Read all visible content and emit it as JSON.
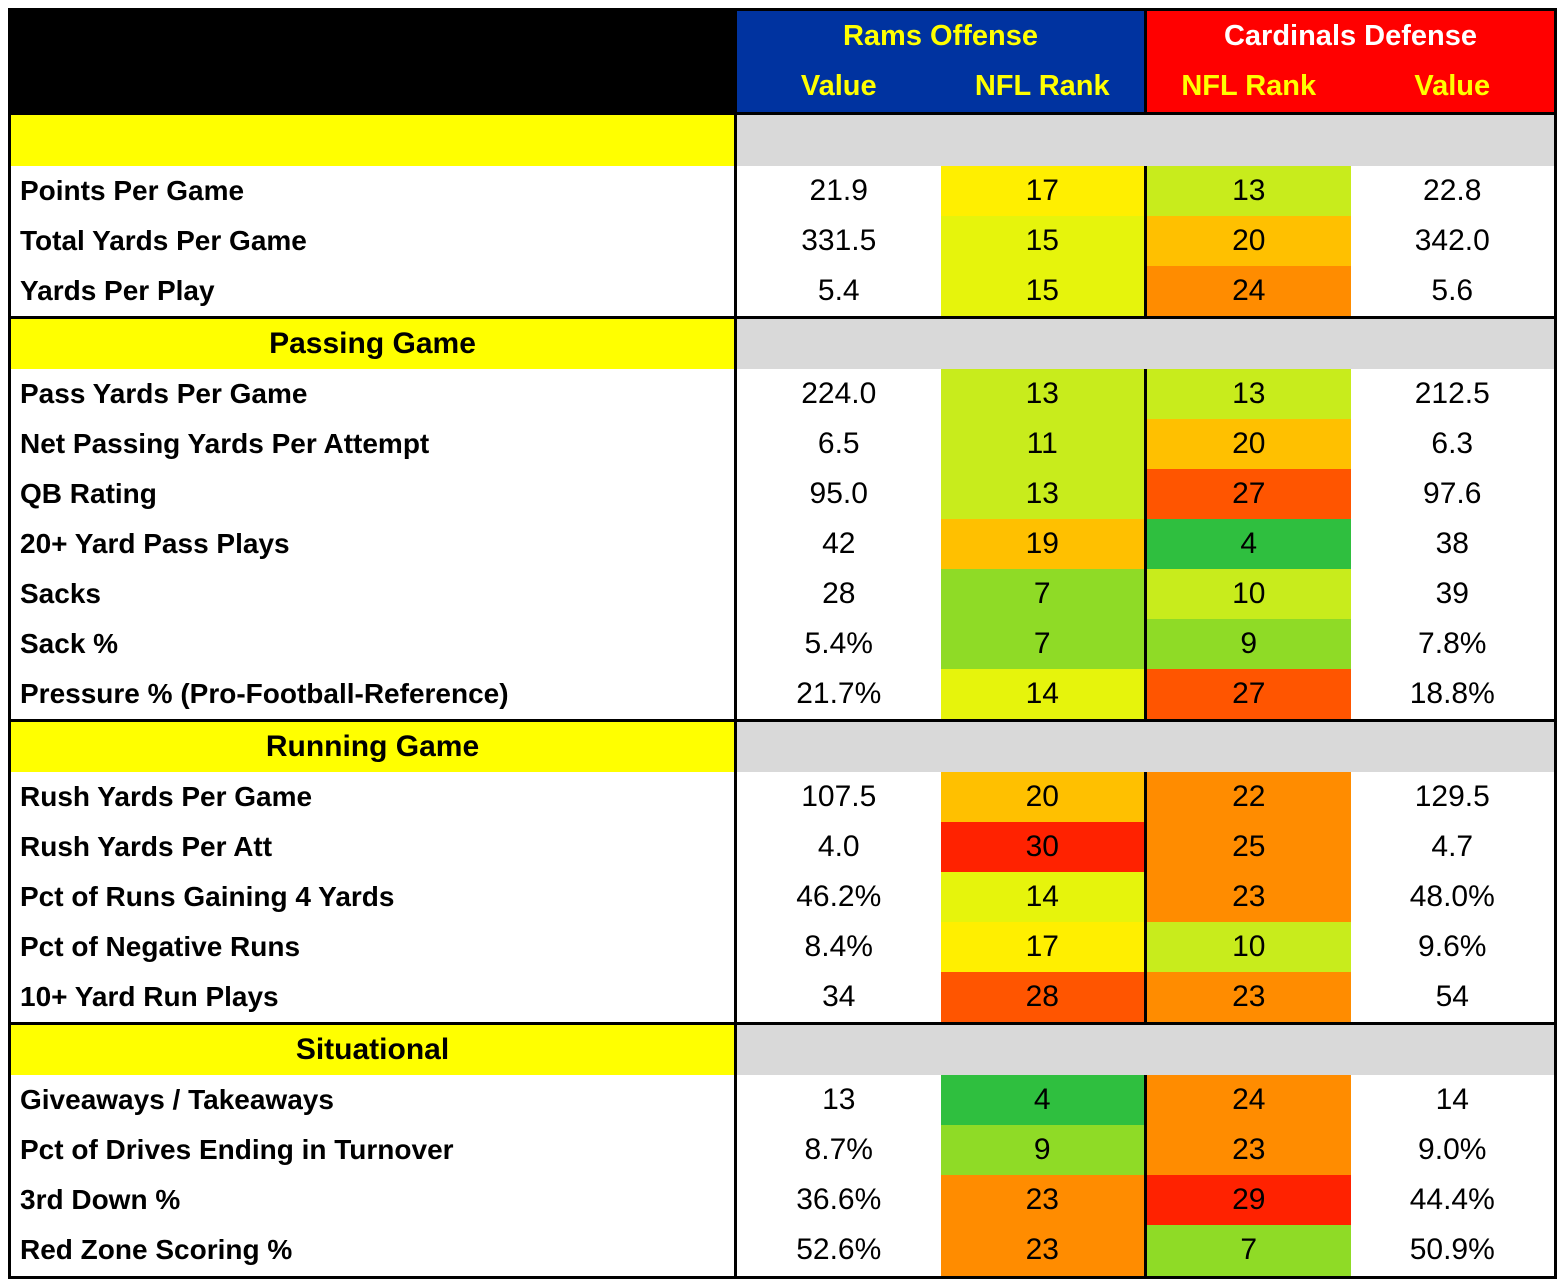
{
  "colors": {
    "black": "#000000",
    "rams_blue": "#0033a0",
    "cardinals_red": "#ff0000",
    "header_text_yellow": "#ffff00",
    "header_text_white": "#ffffff",
    "section_yellow": "#ffff00",
    "section_gray": "#d9d9d9",
    "rank_scale": {
      "best": "#2fbf3f",
      "good": "#8fdb26",
      "mid_good": "#c8ec1c",
      "mid": "#ffef00",
      "mid_bad": "#ffc000",
      "bad": "#ff8c00",
      "worst": "#ff2200"
    }
  },
  "chart_data": {
    "type": "table",
    "title": "",
    "header": {
      "rams_title": "Rams Offense",
      "cardinals_title": "Cardinals Defense",
      "columns": [
        "Value",
        "NFL Rank",
        "NFL Rank",
        "Value"
      ]
    },
    "sections": [
      {
        "title": "",
        "rows": [
          {
            "metric": "Points Per Game",
            "rams_value": "21.9",
            "rams_rank": "17",
            "cards_rank": "13",
            "cards_value": "22.8"
          },
          {
            "metric": "Total Yards Per Game",
            "rams_value": "331.5",
            "rams_rank": "15",
            "cards_rank": "20",
            "cards_value": "342.0"
          },
          {
            "metric": "Yards Per Play",
            "rams_value": "5.4",
            "rams_rank": "15",
            "cards_rank": "24",
            "cards_value": "5.6"
          }
        ]
      },
      {
        "title": "Passing Game",
        "rows": [
          {
            "metric": "Pass Yards Per Game",
            "rams_value": "224.0",
            "rams_rank": "13",
            "cards_rank": "13",
            "cards_value": "212.5"
          },
          {
            "metric": "Net Passing Yards Per Attempt",
            "rams_value": "6.5",
            "rams_rank": "11",
            "cards_rank": "20",
            "cards_value": "6.3"
          },
          {
            "metric": "QB Rating",
            "rams_value": "95.0",
            "rams_rank": "13",
            "cards_rank": "27",
            "cards_value": "97.6"
          },
          {
            "metric": "20+ Yard Pass Plays",
            "rams_value": "42",
            "rams_rank": "19",
            "cards_rank": "4",
            "cards_value": "38"
          },
          {
            "metric": "Sacks",
            "rams_value": "28",
            "rams_rank": "7",
            "cards_rank": "10",
            "cards_value": "39"
          },
          {
            "metric": "Sack %",
            "rams_value": "5.4%",
            "rams_rank": "7",
            "cards_rank": "9",
            "cards_value": "7.8%"
          },
          {
            "metric": "Pressure % (Pro-Football-Reference)",
            "rams_value": "21.7%",
            "rams_rank": "14",
            "cards_rank": "27",
            "cards_value": "18.8%"
          }
        ]
      },
      {
        "title": "Running Game",
        "rows": [
          {
            "metric": "Rush Yards Per Game",
            "rams_value": "107.5",
            "rams_rank": "20",
            "cards_rank": "22",
            "cards_value": "129.5"
          },
          {
            "metric": "Rush Yards Per Att",
            "rams_value": "4.0",
            "rams_rank": "30",
            "cards_rank": "25",
            "cards_value": "4.7"
          },
          {
            "metric": "Pct of Runs Gaining 4 Yards",
            "rams_value": "46.2%",
            "rams_rank": "14",
            "cards_rank": "23",
            "cards_value": "48.0%"
          },
          {
            "metric": "Pct of Negative Runs",
            "rams_value": "8.4%",
            "rams_rank": "17",
            "cards_rank": "10",
            "cards_value": "9.6%"
          },
          {
            "metric": "10+ Yard Run Plays",
            "rams_value": "34",
            "rams_rank": "28",
            "cards_rank": "23",
            "cards_value": "54"
          }
        ]
      },
      {
        "title": "Situational",
        "rows": [
          {
            "metric": "Giveaways / Takeaways",
            "rams_value": "13",
            "rams_rank": "4",
            "cards_rank": "24",
            "cards_value": "14"
          },
          {
            "metric": "Pct of Drives Ending in Turnover",
            "rams_value": "8.7%",
            "rams_rank": "9",
            "cards_rank": "23",
            "cards_value": "9.0%"
          },
          {
            "metric": "3rd Down %",
            "rams_value": "36.6%",
            "rams_rank": "23",
            "cards_rank": "29",
            "cards_value": "44.4%"
          },
          {
            "metric": "Red Zone Scoring %",
            "rams_value": "52.6%",
            "rams_rank": "23",
            "cards_rank": "7",
            "cards_value": "50.9%"
          }
        ]
      }
    ]
  }
}
